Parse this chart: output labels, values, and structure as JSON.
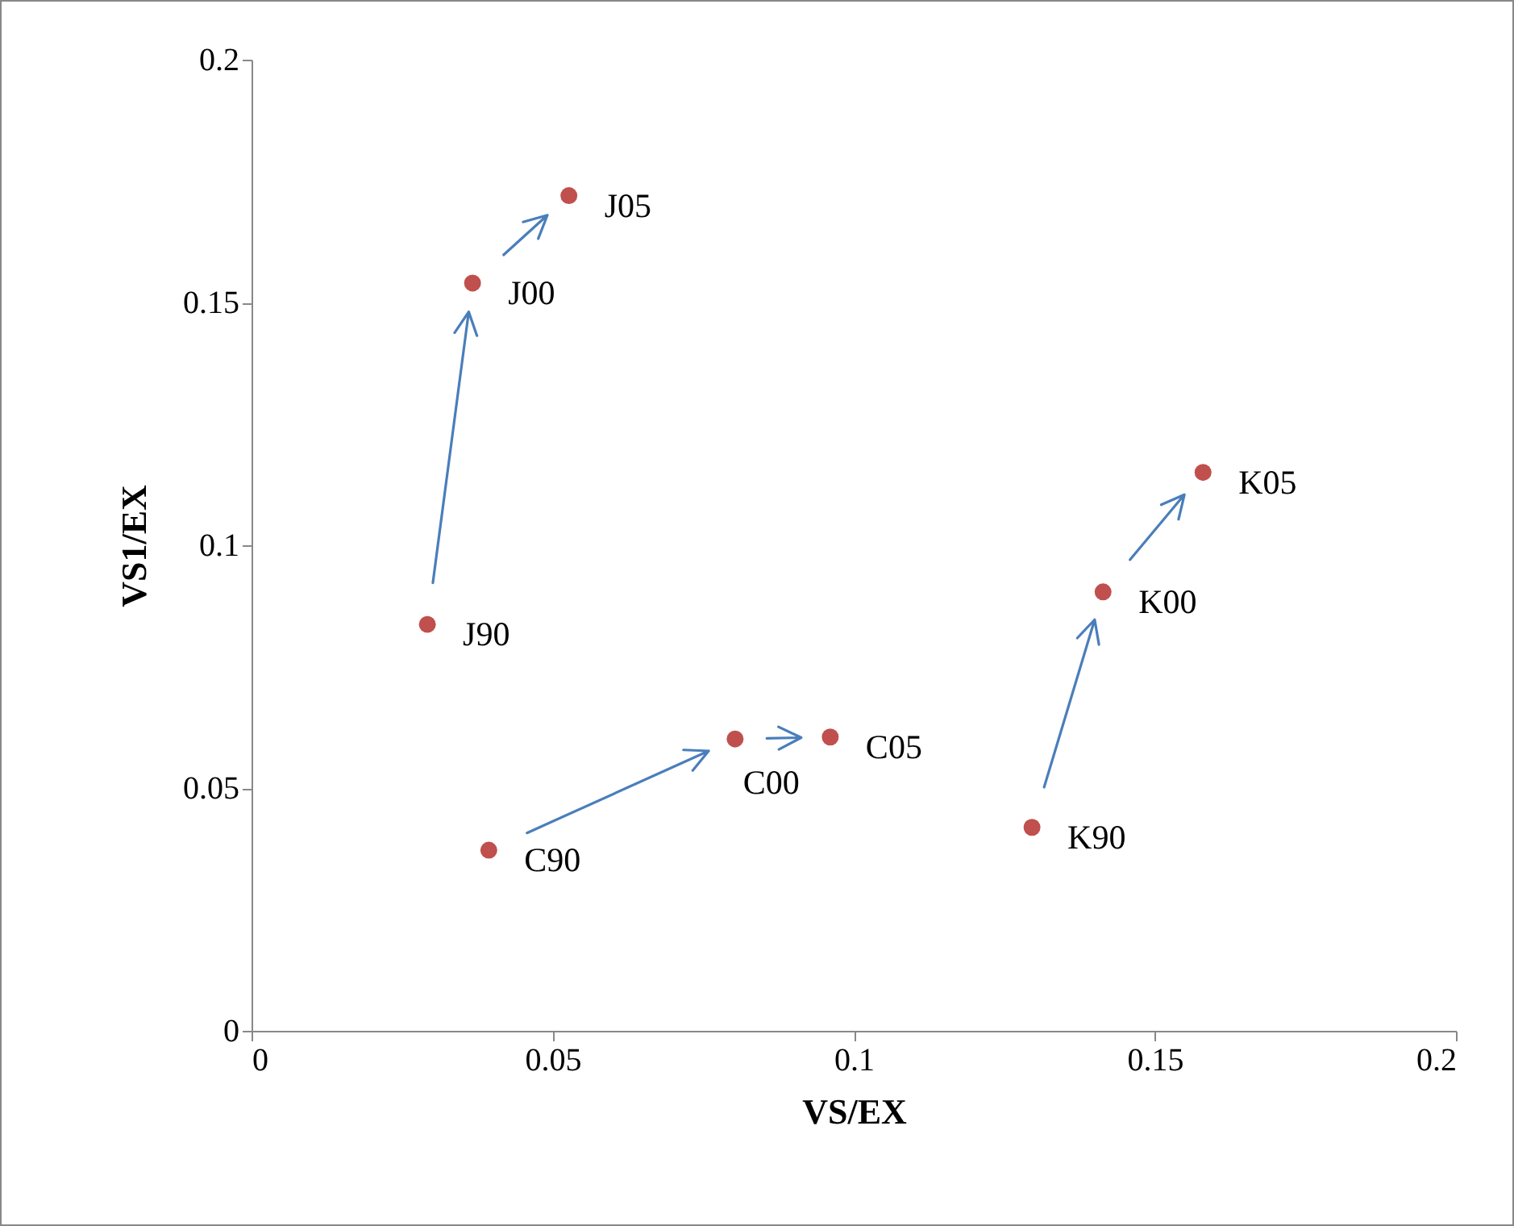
{
  "chart_data": {
    "type": "scatter",
    "xlabel": "VS/EX",
    "ylabel": "VS1/EX",
    "xlim": [
      0,
      0.2
    ],
    "ylim": [
      0,
      0.2
    ],
    "xticks": [
      0,
      0.05,
      0.1,
      0.15,
      0.2
    ],
    "yticks": [
      0,
      0.05,
      0.1,
      0.15,
      0.2
    ],
    "grid": false,
    "legend": false,
    "marker": "circle",
    "series": [
      {
        "color": "#c0504d",
        "x": [
          0.0292,
          0.0367,
          0.0527
        ],
        "values": [
          0.0837,
          0.154,
          0.172
        ]
      },
      {
        "color": "#c0504d",
        "x": [
          0.0394,
          0.0803,
          0.0961
        ],
        "values": [
          0.0372,
          0.0601,
          0.0605
        ]
      },
      {
        "color": "#c0504d",
        "x": [
          0.1296,
          0.1414,
          0.158
        ],
        "values": [
          0.0419,
          0.0904,
          0.115
        ]
      }
    ],
    "annotations": [
      {
        "text": "J90",
        "x": 0.0292,
        "y": 0.0837
      },
      {
        "text": "J00",
        "x": 0.0367,
        "y": 0.154
      },
      {
        "text": "J05",
        "x": 0.0527,
        "y": 0.172
      },
      {
        "text": "C90",
        "x": 0.0394,
        "y": 0.0372
      },
      {
        "text": "C00",
        "x": 0.0803,
        "y": 0.0601
      },
      {
        "text": "C05",
        "x": 0.0961,
        "y": 0.0605
      },
      {
        "text": "K90",
        "x": 0.1296,
        "y": 0.0419
      },
      {
        "text": "K00",
        "x": 0.1414,
        "y": 0.0904
      },
      {
        "text": "K05",
        "x": 0.158,
        "y": 0.115
      }
    ]
  }
}
